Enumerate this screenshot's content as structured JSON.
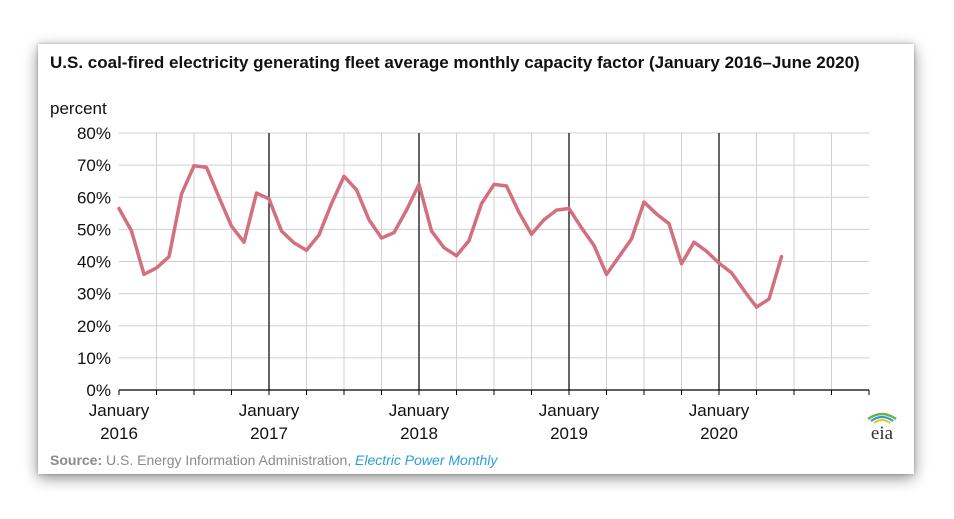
{
  "card": {
    "title": "U.S. coal-fired electricity generating fleet average monthly capacity factor (January 2016–June 2020)",
    "unit_label": "percent",
    "source_label": "Source:",
    "source_org": "U.S. Energy Information Administration,",
    "source_pub": "Electric Power Monthly",
    "logo_text": "eia"
  },
  "colors": {
    "line": "#d2707f",
    "grid": "#d0d0d0",
    "divider": "#000000",
    "logo_green": "#6ab04c",
    "logo_blue": "#2b9fd4",
    "logo_yellow": "#f1c40f"
  },
  "chart_data": {
    "type": "line",
    "title": "U.S. coal-fired electricity generating fleet average monthly capacity factor (January 2016–June 2020)",
    "xlabel": "",
    "ylabel": "percent",
    "ylim": [
      0,
      80
    ],
    "yticks": [
      0,
      10,
      20,
      30,
      40,
      50,
      60,
      70,
      80
    ],
    "ytick_labels": [
      "0%",
      "10%",
      "20%",
      "30%",
      "40%",
      "50%",
      "60%",
      "70%",
      "80%"
    ],
    "xlim_months": [
      0,
      60
    ],
    "grid": true,
    "year_labels": [
      {
        "month_index": 0,
        "line1": "January",
        "line2": "2016"
      },
      {
        "month_index": 12,
        "line1": "January",
        "line2": "2017"
      },
      {
        "month_index": 24,
        "line1": "January",
        "line2": "2018"
      },
      {
        "month_index": 36,
        "line1": "January",
        "line2": "2019"
      },
      {
        "month_index": 48,
        "line1": "January",
        "line2": "2020"
      }
    ],
    "series": [
      {
        "name": "Capacity factor",
        "months": [
          "2016-01",
          "2016-02",
          "2016-03",
          "2016-04",
          "2016-05",
          "2016-06",
          "2016-07",
          "2016-08",
          "2016-09",
          "2016-10",
          "2016-11",
          "2016-12",
          "2017-01",
          "2017-02",
          "2017-03",
          "2017-04",
          "2017-05",
          "2017-06",
          "2017-07",
          "2017-08",
          "2017-09",
          "2017-10",
          "2017-11",
          "2017-12",
          "2018-01",
          "2018-02",
          "2018-03",
          "2018-04",
          "2018-05",
          "2018-06",
          "2018-07",
          "2018-08",
          "2018-09",
          "2018-10",
          "2018-11",
          "2018-12",
          "2019-01",
          "2019-02",
          "2019-03",
          "2019-04",
          "2019-05",
          "2019-06",
          "2019-07",
          "2019-08",
          "2019-09",
          "2019-10",
          "2019-11",
          "2019-12",
          "2020-01",
          "2020-02",
          "2020-03",
          "2020-04",
          "2020-05",
          "2020-06"
        ],
        "values": [
          56.5,
          49.5,
          36,
          38,
          41.5,
          61,
          69.8,
          69.3,
          60,
          51,
          46,
          61.3,
          59.5,
          49.5,
          45.8,
          43.5,
          48.3,
          58,
          66.5,
          62.3,
          53,
          47.3,
          49,
          56,
          64,
          49.5,
          44.3,
          41.8,
          46.5,
          58,
          64,
          63.5,
          55.3,
          48.5,
          53,
          56,
          56.5,
          50.5,
          45,
          36,
          41.5,
          47,
          58.5,
          54.8,
          51.8,
          39.3,
          46,
          43.2,
          39.5,
          36.5,
          31,
          25.8,
          28.3,
          41.5
        ]
      }
    ]
  }
}
